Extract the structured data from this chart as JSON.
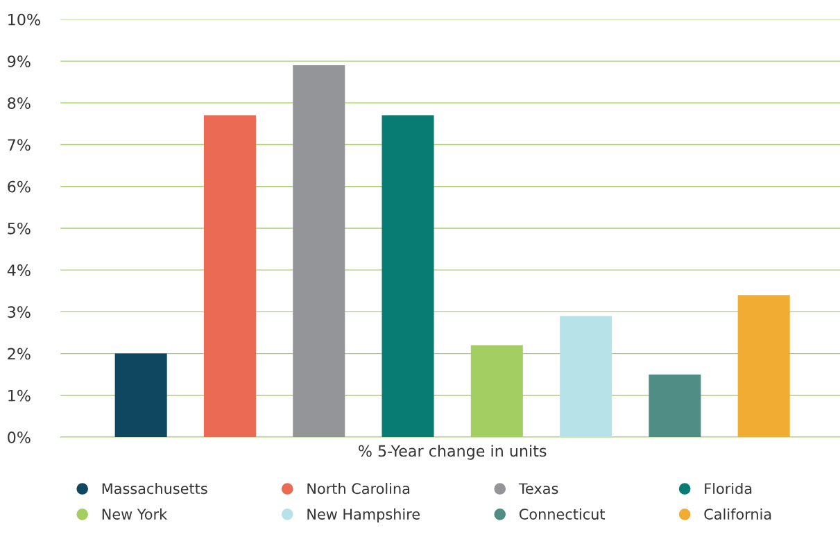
{
  "chart_data": {
    "type": "bar",
    "categories": [
      "% 5-Year change in units"
    ],
    "series": [
      {
        "name": "Massachusetts",
        "color": "#0f4761",
        "values": [
          2.0
        ]
      },
      {
        "name": "North Carolina",
        "color": "#ea6a53",
        "values": [
          7.7
        ]
      },
      {
        "name": "Texas",
        "color": "#939598",
        "values": [
          8.9
        ]
      },
      {
        "name": "Florida",
        "color": "#087b73",
        "values": [
          7.7
        ]
      },
      {
        "name": "New York",
        "color": "#a3cf62",
        "values": [
          2.2
        ]
      },
      {
        "name": "New Hampshire",
        "color": "#b7e2e8",
        "values": [
          2.9
        ]
      },
      {
        "name": "Connecticut",
        "color": "#4f8d85",
        "values": [
          1.5
        ]
      },
      {
        "name": "California",
        "color": "#f0ac33",
        "values": [
          3.4
        ]
      }
    ],
    "ylim": [
      0,
      10
    ],
    "yticks": [
      {
        "value": 0,
        "label": "0%"
      },
      {
        "value": 1,
        "label": "1%"
      },
      {
        "value": 2,
        "label": "2%"
      },
      {
        "value": 3,
        "label": "3%"
      },
      {
        "value": 4,
        "label": "4%"
      },
      {
        "value": 5,
        "label": "5%"
      },
      {
        "value": 6,
        "label": "6%"
      },
      {
        "value": 7,
        "label": "7%"
      },
      {
        "value": 8,
        "label": "8%"
      },
      {
        "value": 9,
        "label": "9%"
      },
      {
        "value": 10,
        "label": "10%"
      }
    ],
    "grid": "y",
    "legend": "bottom"
  }
}
